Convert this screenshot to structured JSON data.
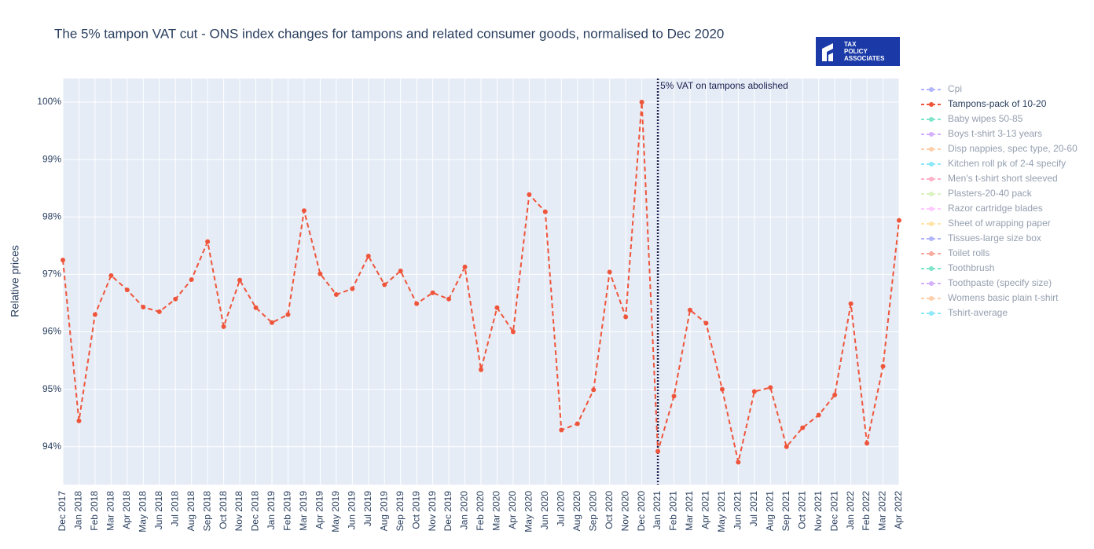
{
  "chart_data": {
    "type": "line",
    "title": "The 5% tampon VAT cut - ONS index changes for tampons and related consumer goods, normalised to Dec 2020",
    "logo": [
      "TAX",
      "POLICY",
      "ASSOCIATES"
    ],
    "y_label": "Relative prices",
    "categories": [
      "Dec 2017",
      "Jan 2018",
      "Feb 2018",
      "Mar 2018",
      "Apr 2018",
      "May 2018",
      "Jun 2018",
      "Jul 2018",
      "Aug 2018",
      "Sep 2018",
      "Oct 2018",
      "Nov 2018",
      "Dec 2018",
      "Jan 2019",
      "Feb 2019",
      "Mar 2019",
      "Apr 2019",
      "May 2019",
      "Jun 2019",
      "Jul 2019",
      "Aug 2019",
      "Sep 2019",
      "Oct 2019",
      "Nov 2019",
      "Dec 2019",
      "Jan 2020",
      "Feb 2020",
      "Mar 2020",
      "Apr 2020",
      "May 2020",
      "Jun 2020",
      "Jul 2020",
      "Aug 2020",
      "Sep 2020",
      "Oct 2020",
      "Nov 2020",
      "Dec 2020",
      "Jan 2021",
      "Feb 2021",
      "Mar 2021",
      "Apr 2021",
      "May 2021",
      "Jun 2021",
      "Jul 2021",
      "Aug 2021",
      "Sep 2021",
      "Oct 2021",
      "Nov 2021",
      "Dec 2021",
      "Jan 2022",
      "Feb 2022",
      "Mar 2022",
      "Apr 2022"
    ],
    "series": [
      {
        "name": "Cpi",
        "color": "#636efa",
        "visible": "legendonly"
      },
      {
        "name": "Tampons-pack of 10-20",
        "color": "#EF553B",
        "visible": true,
        "values": [
          97.25,
          94.45,
          96.3,
          96.98,
          96.73,
          96.43,
          96.35,
          96.57,
          96.91,
          97.57,
          96.09,
          96.9,
          96.42,
          96.16,
          96.3,
          98.11,
          97.01,
          96.65,
          96.75,
          97.32,
          96.82,
          97.06,
          96.49,
          96.68,
          96.57,
          97.13,
          95.34,
          96.42,
          96.0,
          98.39,
          98.09,
          94.29,
          94.4,
          94.99,
          97.04,
          96.26,
          100,
          93.92,
          94.88,
          96.38,
          96.15,
          95.0,
          93.73,
          94.96,
          95.03,
          94.0,
          94.33,
          94.55,
          94.9,
          96.49,
          94.06,
          95.4,
          97.94
        ]
      },
      {
        "name": "Baby wipes 50-85",
        "color": "#00cc96",
        "visible": "legendonly"
      },
      {
        "name": "Boys t-shirt 3-13 years",
        "color": "#ab63fa",
        "visible": "legendonly"
      },
      {
        "name": "Disp nappies, spec type, 20-60",
        "color": "#FFA15A",
        "visible": "legendonly"
      },
      {
        "name": "Kitchen roll pk of 2-4 specify",
        "color": "#19d3f3",
        "visible": "legendonly"
      },
      {
        "name": "Men's t-shirt short sleeved",
        "color": "#FF6692",
        "visible": "legendonly"
      },
      {
        "name": "Plasters-20-40 pack",
        "color": "#B6E880",
        "visible": "legendonly"
      },
      {
        "name": "Razor cartridge blades",
        "color": "#FF97FF",
        "visible": "legendonly"
      },
      {
        "name": "Sheet of wrapping paper",
        "color": "#FECB52",
        "visible": "legendonly"
      },
      {
        "name": "Tissues-large size box",
        "color": "#636efa",
        "visible": "legendonly"
      },
      {
        "name": "Toilet rolls",
        "color": "#EF553B",
        "visible": "legendonly"
      },
      {
        "name": "Toothbrush",
        "color": "#00cc96",
        "visible": "legendonly"
      },
      {
        "name": "Toothpaste (specify size)",
        "color": "#ab63fa",
        "visible": "legendonly"
      },
      {
        "name": "Womens basic plain t-shirt",
        "color": "#FFA15A",
        "visible": "legendonly"
      },
      {
        "name": "Tshirt-average",
        "color": "#19d3f3",
        "visible": "legendonly"
      }
    ],
    "ylim": [
      93.34,
      100.41
    ],
    "yticks": [
      {
        "value": 94,
        "label": "94%"
      },
      {
        "value": 95,
        "label": "95%"
      },
      {
        "value": 96,
        "label": "96%"
      },
      {
        "value": 97,
        "label": "97%"
      },
      {
        "value": 98,
        "label": "98%"
      },
      {
        "value": 99,
        "label": "99%"
      },
      {
        "value": 100,
        "label": "100%"
      }
    ],
    "grid": true,
    "annotation": {
      "x": "Jan 2021",
      "text": "5% VAT on tampons abolished",
      "color": "#1a1f4e"
    }
  }
}
